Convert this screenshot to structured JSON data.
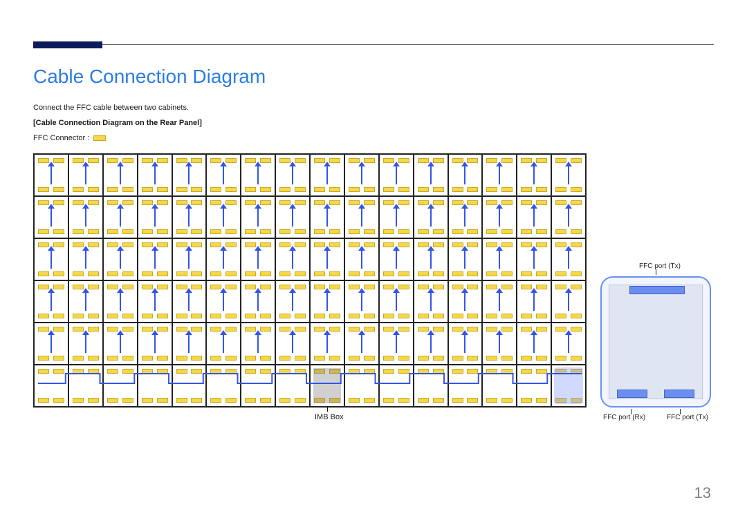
{
  "page": {
    "title": "Cable Connection Diagram",
    "intro": "Connect the FFC cable between two cabinets.",
    "subhead": "[Cable Connection Diagram on the Rear Panel]",
    "legend_label": "FFC Connector :",
    "imb_label": "IMB Box",
    "page_number": "13"
  },
  "grid": {
    "cols": 16,
    "rows": 6,
    "connectors_per_cell": 4,
    "connector_color": "#f5d84a",
    "connector_border": "#c9a826",
    "arrow_color": "#3355e6",
    "imb_cell": {
      "row": 5,
      "col": 8
    },
    "rx_cell": {
      "row": 5,
      "col": 15
    },
    "cell_border_color": "#222222"
  },
  "detail": {
    "outline_color": "#6a8ff0",
    "pcb_color": "#dfe6f2",
    "port_color": "#6a8ff0",
    "labels": {
      "tx_top": "FFC port (Tx)",
      "rx": "FFC port (Rx)",
      "tx_bottom": "FFC port (Tx)"
    }
  },
  "colors": {
    "title": "#2a7de1",
    "header_block": "#0c1b5a",
    "page_number": "#808080"
  }
}
